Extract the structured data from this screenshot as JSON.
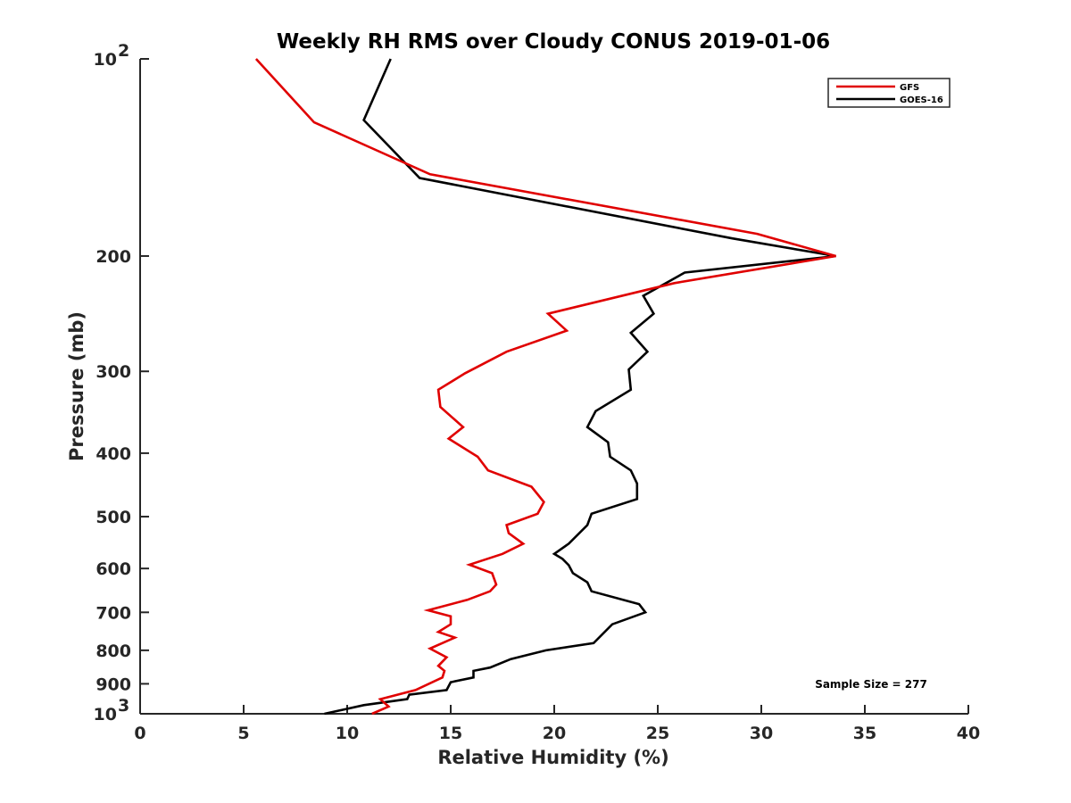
{
  "chart_data": {
    "type": "line",
    "title": "Weekly RH RMS over Cloudy CONUS 2019-01-06",
    "xlabel": "Relative Humidity (%)",
    "ylabel": "Pressure (mb)",
    "xlim": [
      0,
      40
    ],
    "ylim": [
      100,
      1000
    ],
    "y_scale": "log",
    "y_reversed": true,
    "grid": false,
    "x_ticks": [
      0,
      5,
      10,
      15,
      20,
      25,
      30,
      35,
      40
    ],
    "y_ticks": [
      {
        "value": 100,
        "label": "10",
        "sup": "2"
      },
      {
        "value": 200,
        "label": "200"
      },
      {
        "value": 300,
        "label": "300"
      },
      {
        "value": 400,
        "label": "400"
      },
      {
        "value": 500,
        "label": "500"
      },
      {
        "value": 600,
        "label": "600"
      },
      {
        "value": 700,
        "label": "700"
      },
      {
        "value": 800,
        "label": "800"
      },
      {
        "value": 900,
        "label": "900"
      },
      {
        "value": 1000,
        "label": "10",
        "sup": "3"
      }
    ],
    "legend": {
      "placement": "top-right",
      "entries": [
        "GFS",
        "GOES-16"
      ]
    },
    "annotation": "Sample Size = 277",
    "series": [
      {
        "name": "GFS",
        "color": "#e00000",
        "points": [
          [
            5.6,
            100
          ],
          [
            8.4,
            125
          ],
          [
            14.0,
            150
          ],
          [
            29.8,
            185
          ],
          [
            33.6,
            200
          ],
          [
            25.8,
            220
          ],
          [
            19.7,
            245
          ],
          [
            20.6,
            260
          ],
          [
            17.7,
            280
          ],
          [
            15.7,
            302
          ],
          [
            14.4,
            320
          ],
          [
            14.5,
            340
          ],
          [
            15.6,
            365
          ],
          [
            14.9,
            380
          ],
          [
            16.3,
            405
          ],
          [
            16.8,
            425
          ],
          [
            18.9,
            450
          ],
          [
            19.5,
            475
          ],
          [
            19.2,
            495
          ],
          [
            17.7,
            515
          ],
          [
            17.8,
            530
          ],
          [
            18.5,
            550
          ],
          [
            17.5,
            570
          ],
          [
            15.9,
            592
          ],
          [
            17.0,
            610
          ],
          [
            17.2,
            635
          ],
          [
            16.9,
            650
          ],
          [
            15.8,
            670
          ],
          [
            13.9,
            695
          ],
          [
            15.0,
            710
          ],
          [
            15.0,
            730
          ],
          [
            14.4,
            750
          ],
          [
            15.2,
            765
          ],
          [
            14.0,
            795
          ],
          [
            14.8,
            820
          ],
          [
            14.4,
            845
          ],
          [
            14.7,
            860
          ],
          [
            14.6,
            880
          ],
          [
            13.3,
            920
          ],
          [
            11.6,
            950
          ],
          [
            12.0,
            975
          ],
          [
            11.2,
            1000
          ]
        ]
      },
      {
        "name": "GOES-16",
        "color": "#000000",
        "points": [
          [
            12.1,
            100
          ],
          [
            10.8,
            124
          ],
          [
            13.5,
            152
          ],
          [
            28.6,
            188
          ],
          [
            33.6,
            200
          ],
          [
            26.3,
            212
          ],
          [
            24.3,
            230
          ],
          [
            24.8,
            245
          ],
          [
            23.7,
            262
          ],
          [
            24.5,
            280
          ],
          [
            23.6,
            298
          ],
          [
            23.7,
            320
          ],
          [
            22.0,
            345
          ],
          [
            21.6,
            365
          ],
          [
            22.6,
            385
          ],
          [
            22.7,
            405
          ],
          [
            23.7,
            425
          ],
          [
            24.0,
            445
          ],
          [
            24.0,
            470
          ],
          [
            21.8,
            495
          ],
          [
            21.6,
            515
          ],
          [
            20.7,
            550
          ],
          [
            20.0,
            570
          ],
          [
            20.4,
            580
          ],
          [
            20.7,
            593
          ],
          [
            20.9,
            610
          ],
          [
            21.6,
            630
          ],
          [
            21.8,
            650
          ],
          [
            24.1,
            680
          ],
          [
            24.4,
            700
          ],
          [
            22.8,
            730
          ],
          [
            21.9,
            780
          ],
          [
            19.6,
            800
          ],
          [
            17.9,
            825
          ],
          [
            16.9,
            850
          ],
          [
            16.1,
            860
          ],
          [
            16.1,
            880
          ],
          [
            15.0,
            895
          ],
          [
            14.8,
            920
          ],
          [
            13.0,
            935
          ],
          [
            12.9,
            950
          ],
          [
            10.8,
            970
          ],
          [
            8.9,
            1000
          ]
        ]
      }
    ]
  }
}
